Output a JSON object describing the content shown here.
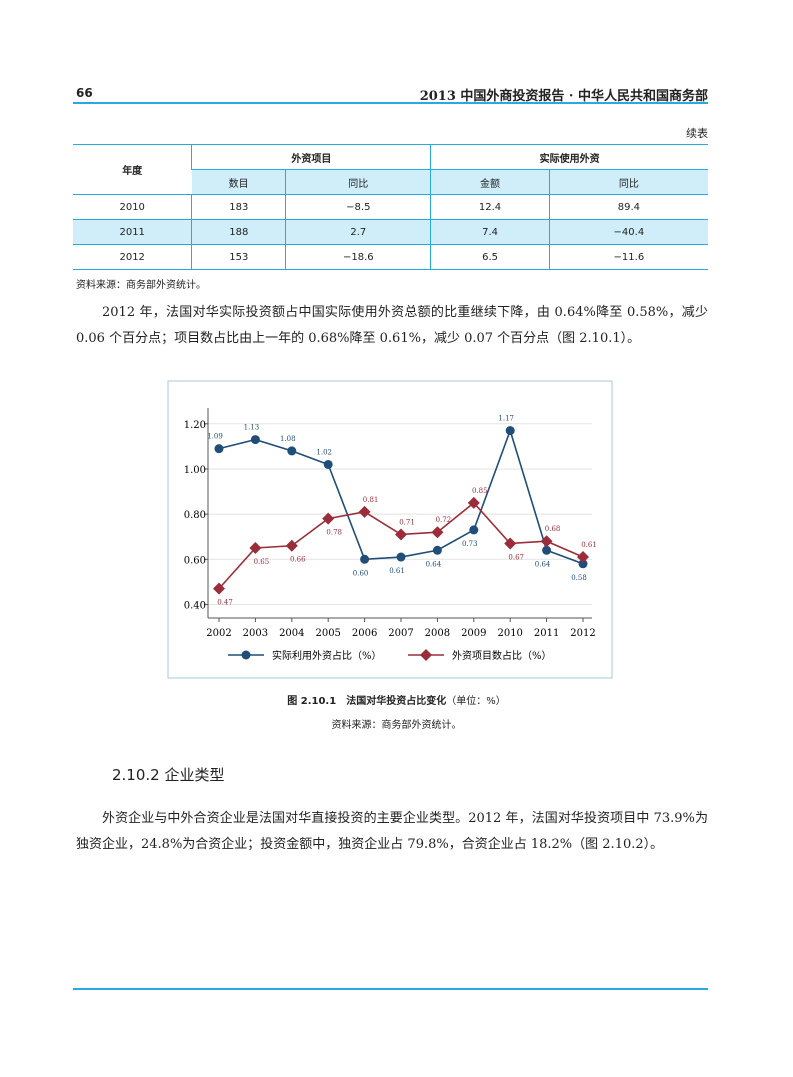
{
  "header": {
    "page_number": "66",
    "title": "2013 中国外商投资报告 · 中华人民共和国商务部"
  },
  "table": {
    "caption": "续表",
    "corner": "年度",
    "groups": [
      "外资项目",
      "实际使用外资"
    ],
    "subheaders": [
      "数目",
      "同比",
      "金额",
      "同比"
    ],
    "rows": [
      [
        "2010",
        "183",
        "−8.5",
        "12.4",
        "89.4"
      ],
      [
        "2011",
        "188",
        "2.7",
        "7.4",
        "−40.4"
      ],
      [
        "2012",
        "153",
        "−18.6",
        "6.5",
        "−11.6"
      ]
    ],
    "source": "资料来源：商务部外资统计。"
  },
  "paragraph_1": "2012 年，法国对华实际投资额占中国实际使用外资总额的比重继续下降，由 0.64%降至 0.58%，减少 0.06 个百分点；项目数占比由上一年的 0.68%降至 0.61%，减少 0.07 个百分点（图 2.10.1）。",
  "chart_data": {
    "type": "line",
    "categories": [
      "2002",
      "2003",
      "2004",
      "2005",
      "2006",
      "2007",
      "2008",
      "2009",
      "2010",
      "2011",
      "2012"
    ],
    "series": [
      {
        "name": "实际利用外资占比（%）",
        "color": "#1f4e79",
        "marker": "circle",
        "values": [
          1.09,
          1.13,
          1.08,
          1.02,
          0.6,
          0.61,
          0.64,
          0.73,
          1.17,
          0.64,
          0.58
        ],
        "value_labels": [
          "1.09",
          "1.13",
          "1.08",
          "1.02",
          "0.60",
          "0.61",
          "0.64",
          "0.73",
          "1.17",
          "0.64",
          "0.58"
        ]
      },
      {
        "name": "外资项目数占比（%）",
        "color": "#9b2d3a",
        "marker": "diamond",
        "values": [
          0.47,
          0.65,
          0.66,
          0.78,
          0.81,
          0.71,
          0.72,
          0.85,
          0.67,
          0.68,
          0.61
        ],
        "value_labels": [
          "0.47",
          "0.65",
          "0.66",
          "0.78",
          "0.81",
          "0.71",
          "0.72",
          "0.85",
          "0.67",
          "0.68",
          "0.61"
        ]
      }
    ],
    "ylim": [
      0.34,
      1.27
    ],
    "yticks": [
      {
        "value": 0.4,
        "label": "0.40"
      },
      {
        "value": 0.6,
        "label": "0.60"
      },
      {
        "value": 0.8,
        "label": "0.80"
      },
      {
        "value": 1,
        "label": "1.00"
      },
      {
        "value": 1.2,
        "label": "1.20"
      }
    ],
    "grid": true
  },
  "figure": {
    "caption_number": "图 2.10.1",
    "caption_title": "法国对华投资占比变化",
    "caption_unit": "（单位：%）",
    "source": "资料来源：商务部外资统计。"
  },
  "section": {
    "heading": "2.10.2 企业类型",
    "paragraph": "外资企业与中外合资企业是法国对华直接投资的主要企业类型。2012 年，法国对华投资项目中 73.9%为独资企业，24.8%为合资企业；投资金额中，独资企业占 79.8%，合资企业占 18.2%（图 2.10.2）。"
  }
}
